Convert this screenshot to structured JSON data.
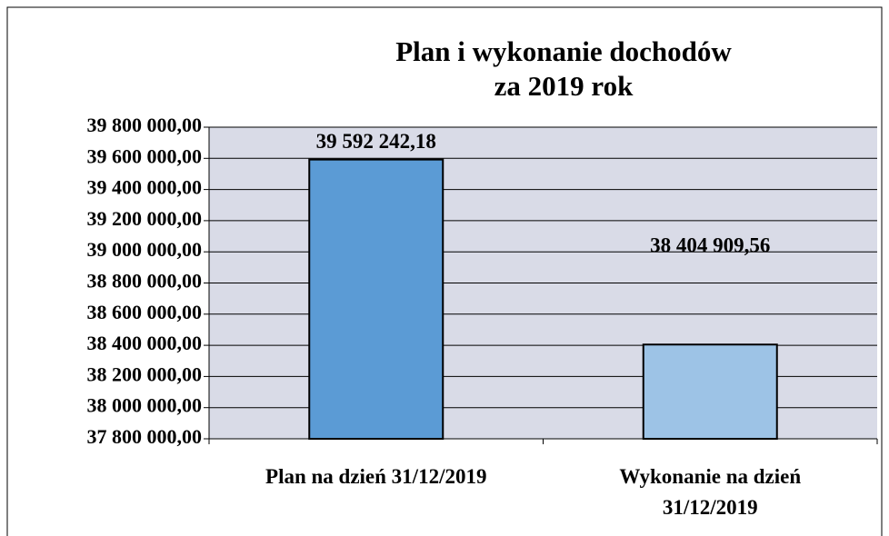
{
  "chart_data": {
    "type": "bar",
    "title": "Plan i wykonanie dochodów",
    "subtitle": "za 2019 rok",
    "categories": [
      "Plan na dzień 31/12/2019",
      "Wykonanie na dzień 31/12/2019"
    ],
    "values": [
      39592242.18,
      38404909.56
    ],
    "value_labels": [
      "39 592 242,18",
      "38 404 909,56"
    ],
    "colors": [
      "#5b9bd5",
      "#9dc3e6"
    ],
    "ylim": [
      37800000,
      39800000
    ],
    "yticks": [
      {
        "value": 37800000,
        "label": "37 800 000,00"
      },
      {
        "value": 38000000,
        "label": "38 000 000,00"
      },
      {
        "value": 38200000,
        "label": "38 200 000,00"
      },
      {
        "value": 38400000,
        "label": "38 400 000,00"
      },
      {
        "value": 38600000,
        "label": "38 600 000,00"
      },
      {
        "value": 38800000,
        "label": "38 800 000,00"
      },
      {
        "value": 39000000,
        "label": "39 000 000,00"
      },
      {
        "value": 39200000,
        "label": "39 200 000,00"
      },
      {
        "value": 39400000,
        "label": "39 400 000,00"
      },
      {
        "value": 39600000,
        "label": "39 600 000,00"
      },
      {
        "value": 39800000,
        "label": "39 800 000,00"
      }
    ],
    "grid": true
  }
}
